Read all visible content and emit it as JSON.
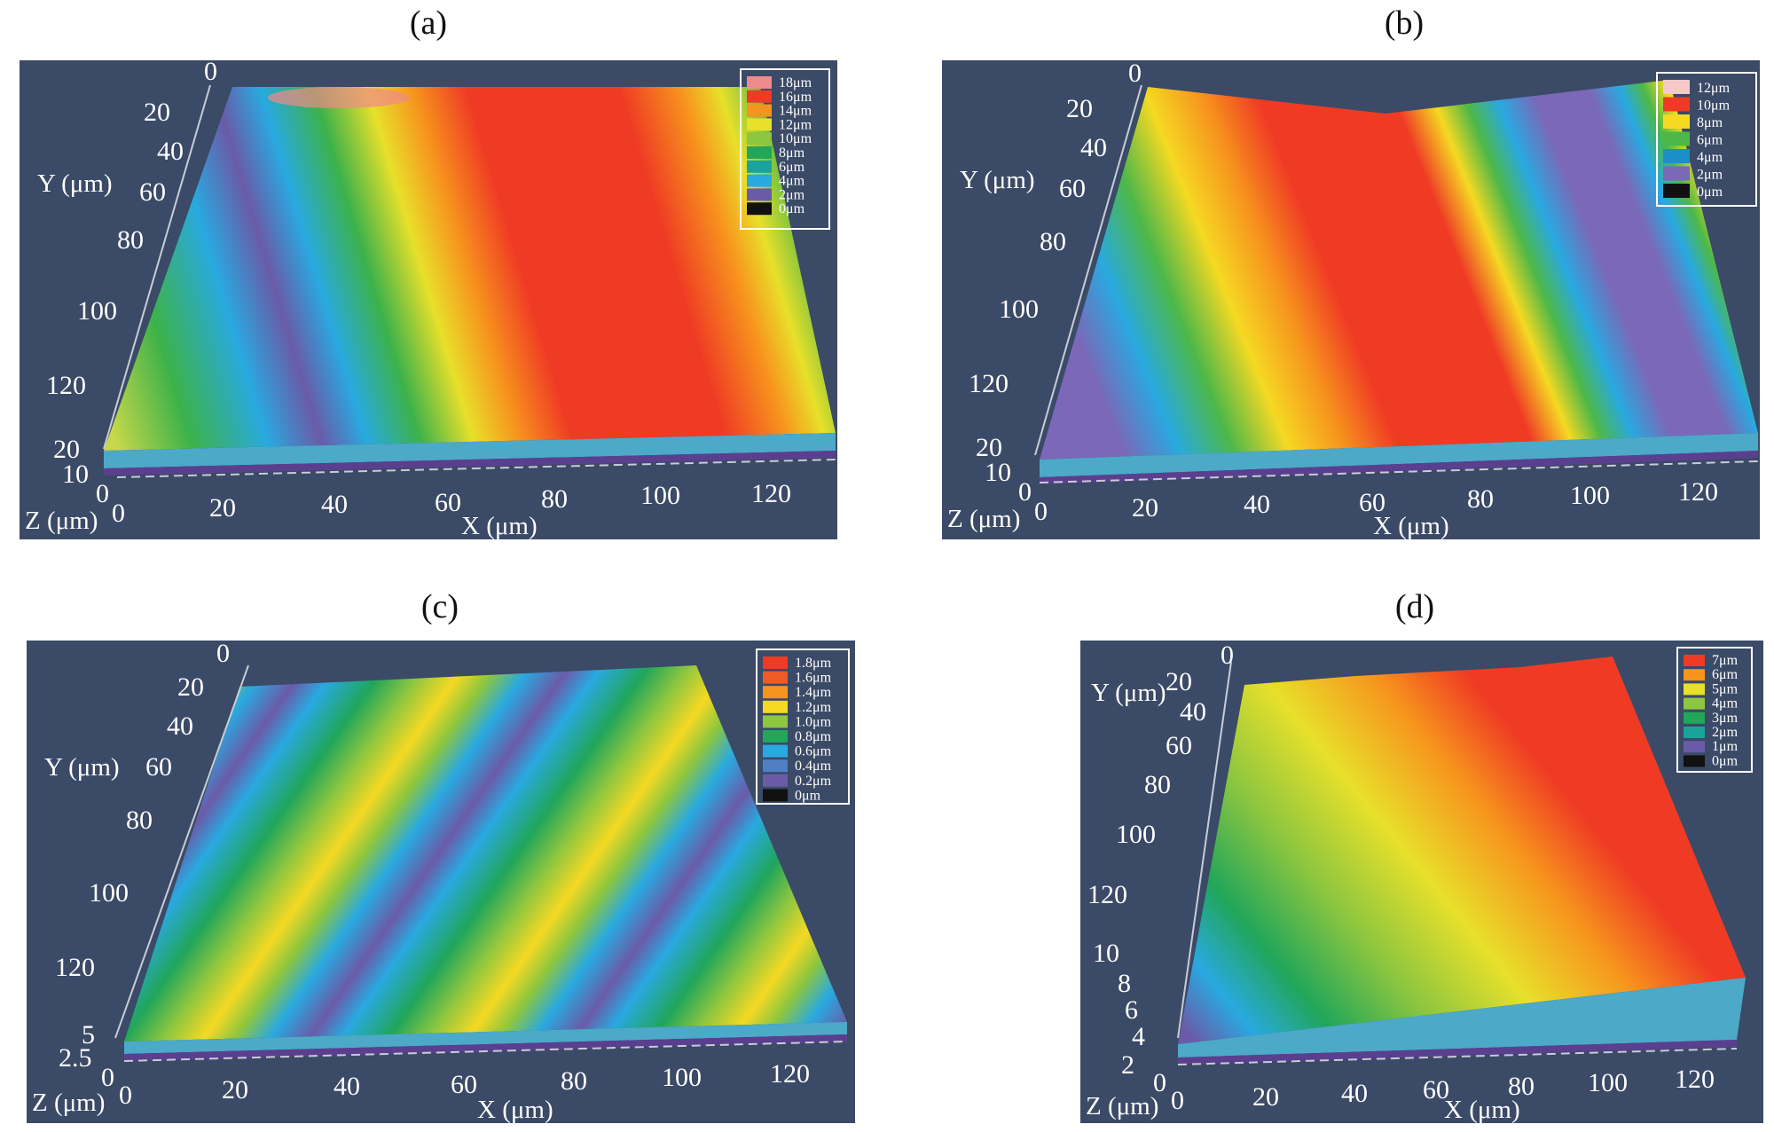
{
  "chart_data": [
    {
      "type": "heatmap",
      "panel_label": "(a)",
      "x_axis": {
        "label": "X (μm)",
        "ticks": [
          "0",
          "20",
          "40",
          "60",
          "80",
          "100",
          "120"
        ]
      },
      "y_axis": {
        "label": "Y (μm)",
        "ticks": [
          "0",
          "20",
          "40",
          "60",
          "80",
          "100",
          "120"
        ]
      },
      "z_axis": {
        "label": "Z (μm)",
        "ticks": [
          "0",
          "10",
          "20"
        ]
      },
      "legend": {
        "placement": "top-right",
        "entries": [
          {
            "label": "18μm",
            "color": "#f08a8a"
          },
          {
            "label": "16μm",
            "color": "#ef3b24"
          },
          {
            "label": "14μm",
            "color": "#f7941d"
          },
          {
            "label": "12μm",
            "color": "#e8e02a"
          },
          {
            "label": "10μm",
            "color": "#8dc63f"
          },
          {
            "label": "8μm",
            "color": "#21a65a"
          },
          {
            "label": "6μm",
            "color": "#1aa39a"
          },
          {
            "label": "4μm",
            "color": "#29a9e0"
          },
          {
            "label": "2μm",
            "color": "#6a5ba8"
          },
          {
            "label": "0μm",
            "color": "#111111"
          }
        ]
      }
    },
    {
      "type": "heatmap",
      "panel_label": "(b)",
      "x_axis": {
        "label": "X (μm)",
        "ticks": [
          "0",
          "20",
          "40",
          "60",
          "80",
          "100",
          "120"
        ]
      },
      "y_axis": {
        "label": "Y (μm)",
        "ticks": [
          "0",
          "20",
          "40",
          "60",
          "80",
          "100",
          "120"
        ]
      },
      "z_axis": {
        "label": "Z (μm)",
        "ticks": [
          "0",
          "10",
          "20"
        ]
      },
      "legend": {
        "placement": "top-right",
        "entries": [
          {
            "label": "12μm",
            "color": "#f6c9c9"
          },
          {
            "label": "10μm",
            "color": "#ef3b24"
          },
          {
            "label": "8μm",
            "color": "#f5d923"
          },
          {
            "label": "6μm",
            "color": "#4db848"
          },
          {
            "label": "4μm",
            "color": "#1c8fc8"
          },
          {
            "label": "2μm",
            "color": "#7b68b8"
          },
          {
            "label": "0μm",
            "color": "#111111"
          }
        ]
      }
    },
    {
      "type": "heatmap",
      "panel_label": "(c)",
      "x_axis": {
        "label": "X (μm)",
        "ticks": [
          "0",
          "20",
          "40",
          "60",
          "80",
          "100",
          "120"
        ]
      },
      "y_axis": {
        "label": "Y (μm)",
        "ticks": [
          "0",
          "20",
          "40",
          "60",
          "80",
          "100",
          "120"
        ]
      },
      "z_axis": {
        "label": "Z (μm)",
        "ticks": [
          "0",
          "2.5",
          "5"
        ]
      },
      "legend": {
        "placement": "top-right",
        "entries": [
          {
            "label": "1.8μm",
            "color": "#ef3b24"
          },
          {
            "label": "1.6μm",
            "color": "#f15a24"
          },
          {
            "label": "1.4μm",
            "color": "#f7941d"
          },
          {
            "label": "1.2μm",
            "color": "#f5d923"
          },
          {
            "label": "1.0μm",
            "color": "#8dc63f"
          },
          {
            "label": "0.8μm",
            "color": "#21a65a"
          },
          {
            "label": "0.6μm",
            "color": "#29a9e0"
          },
          {
            "label": "0.4μm",
            "color": "#4f7fc4"
          },
          {
            "label": "0.2μm",
            "color": "#6a5ba8"
          },
          {
            "label": "0μm",
            "color": "#111111"
          }
        ]
      }
    },
    {
      "type": "heatmap",
      "panel_label": "(d)",
      "x_axis": {
        "label": "X (μm)",
        "ticks": [
          "0",
          "20",
          "40",
          "60",
          "80",
          "100",
          "120"
        ]
      },
      "y_axis": {
        "label": "Y (μm)",
        "ticks": [
          "0",
          "20",
          "40",
          "60",
          "80",
          "100",
          "120"
        ]
      },
      "z_axis": {
        "label": "Z (μm)",
        "ticks": [
          "0",
          "2",
          "4",
          "6",
          "8",
          "10"
        ]
      },
      "legend": {
        "placement": "top-right",
        "entries": [
          {
            "label": "7μm",
            "color": "#ef3b24"
          },
          {
            "label": "6μm",
            "color": "#f7941d"
          },
          {
            "label": "5μm",
            "color": "#e8e02a"
          },
          {
            "label": "4μm",
            "color": "#8dc63f"
          },
          {
            "label": "3μm",
            "color": "#21a65a"
          },
          {
            "label": "2μm",
            "color": "#1aa39a"
          },
          {
            "label": "1μm",
            "color": "#6a5ba8"
          },
          {
            "label": "0μm",
            "color": "#111111"
          }
        ]
      }
    }
  ]
}
